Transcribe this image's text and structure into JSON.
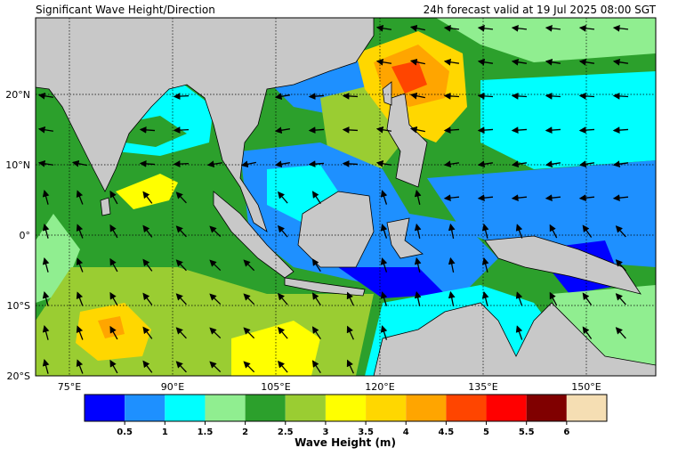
{
  "header": {
    "title": "Significant Wave Height/Direction",
    "valid": "24h forecast valid at 19 Jul 2025 08:00 SGT"
  },
  "map": {
    "lat_labels": [
      "20°N",
      "10°N",
      "0°",
      "10°S",
      "20°S"
    ],
    "lon_labels": [
      "75°E",
      "90°E",
      "105°E",
      "120°E",
      "135°E",
      "150°E"
    ]
  },
  "colorbar": {
    "title": "Wave Height (m)",
    "colors": [
      "#0000ff",
      "#1e90ff",
      "#00ffff",
      "#90ee90",
      "#2ca02c",
      "#9acd32",
      "#ffff00",
      "#ffd700",
      "#ffa500",
      "#ff4500",
      "#ff0000",
      "#800000",
      "#f5deb3"
    ],
    "labels": [
      "0.5",
      "1",
      "1.5",
      "2",
      "2.5",
      "3",
      "3.5",
      "4",
      "4.5",
      "5",
      "5.5",
      "6"
    ]
  }
}
